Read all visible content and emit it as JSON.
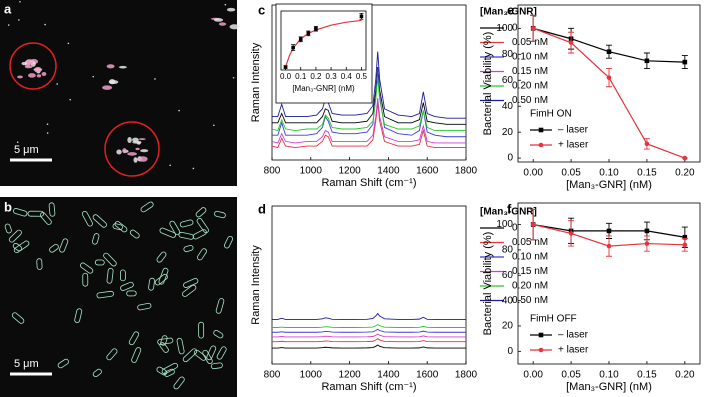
{
  "images": [
    {
      "panel": "a",
      "scale_bar": "5 μm"
    },
    {
      "panel": "b",
      "scale_bar": "5 μm"
    }
  ],
  "chart_data": [
    {
      "panel": "c",
      "type": "line",
      "ylabel": "Raman Intensity",
      "xlabel": "Raman Shift (cm⁻¹)",
      "xlim": [
        800,
        1800
      ],
      "xticks": [
        800,
        1000,
        1200,
        1400,
        1600,
        1800
      ],
      "ylim": [
        0,
        100
      ],
      "legend_title": "[Man₃-GNR]",
      "x": [
        800,
        830,
        850,
        870,
        920,
        980,
        1030,
        1060,
        1075,
        1090,
        1110,
        1160,
        1230,
        1290,
        1320,
        1335,
        1345,
        1355,
        1380,
        1450,
        1520,
        1560,
        1580,
        1600,
        1640,
        1700,
        1750,
        1780,
        1800
      ],
      "series": [
        {
          "name": "0",
          "color": "#000000",
          "values": [
            24,
            24,
            30,
            24,
            24,
            24,
            24,
            28,
            33,
            32,
            25,
            24,
            24,
            25,
            30,
            45,
            60,
            45,
            28,
            24,
            24,
            26,
            37,
            25,
            24,
            23,
            23,
            23,
            23
          ]
        },
        {
          "name": "0.05 nM",
          "color": "#e8323c",
          "values": [
            9,
            8,
            14,
            9,
            8,
            9,
            9,
            12,
            16,
            15,
            9,
            9,
            9,
            9,
            13,
            25,
            37,
            25,
            12,
            9,
            9,
            10,
            19,
            9,
            8,
            8,
            8,
            8,
            8
          ]
        },
        {
          "name": "0.10 nM",
          "color": "#3a3adf",
          "values": [
            16,
            16,
            24,
            16,
            16,
            16,
            17,
            21,
            28,
            25,
            18,
            17,
            17,
            18,
            23,
            41,
            59,
            41,
            21,
            17,
            16,
            19,
            32,
            18,
            16,
            15,
            15,
            15,
            15
          ]
        },
        {
          "name": "0.15 nM",
          "color": "#d040d0",
          "values": [
            12,
            11,
            17,
            12,
            11,
            12,
            12,
            15,
            19,
            18,
            12,
            12,
            12,
            12,
            16,
            28,
            40,
            28,
            15,
            12,
            12,
            13,
            22,
            12,
            11,
            11,
            11,
            11,
            11
          ]
        },
        {
          "name": "0.20 nM",
          "color": "#28c828",
          "values": [
            20,
            19,
            26,
            20,
            19,
            20,
            20,
            23,
            29,
            27,
            21,
            20,
            20,
            21,
            25,
            39,
            53,
            39,
            23,
            20,
            20,
            22,
            32,
            21,
            19,
            19,
            19,
            19,
            19
          ]
        },
        {
          "name": "0.50 nM",
          "color": "#1a1a9a",
          "values": [
            28,
            28,
            36,
            28,
            28,
            28,
            29,
            33,
            39,
            37,
            30,
            29,
            29,
            30,
            35,
            52,
            70,
            52,
            33,
            29,
            28,
            30,
            44,
            30,
            28,
            27,
            27,
            27,
            27
          ]
        }
      ]
    },
    {
      "type": "scatter",
      "xlabel": "[Man₃-GNR] (nM)",
      "xlim": [
        -0.03,
        0.53
      ],
      "xticks": [
        {
          "value": 0,
          "label": "0.0"
        },
        0.1,
        0.2,
        0.3,
        0.4,
        0.5
      ],
      "ylim": [
        0,
        100
      ],
      "x": [
        0,
        0.05,
        0.1,
        0.15,
        0.2,
        0.5
      ],
      "values": [
        5,
        38,
        52,
        62,
        70,
        91
      ],
      "errors": [
        2,
        5,
        4,
        4,
        4,
        5
      ],
      "color": "#000000",
      "fit": {
        "x": [
          0,
          0.025,
          0.05,
          0.1,
          0.15,
          0.2,
          0.3,
          0.4,
          0.5
        ],
        "values": [
          5,
          24,
          37,
          53,
          62,
          68,
          76,
          81,
          84
        ],
        "color": "#e8323c"
      }
    },
    {
      "panel": "d",
      "type": "line",
      "ylabel": "Raman Intensity",
      "xlabel": "Raman Shift (cm⁻¹)",
      "xlim": [
        800,
        1800
      ],
      "xticks": [
        800,
        1000,
        1200,
        1400,
        1600,
        1800
      ],
      "ylim": [
        0,
        100
      ],
      "legend_title": "[Man₃-GNR]",
      "x": [
        800,
        830,
        850,
        870,
        920,
        980,
        1030,
        1060,
        1075,
        1090,
        1110,
        1160,
        1230,
        1290,
        1320,
        1335,
        1345,
        1355,
        1380,
        1450,
        1520,
        1560,
        1580,
        1600,
        1640,
        1700,
        1750,
        1780,
        1800
      ],
      "series": [
        {
          "name": "0",
          "color": "#000000",
          "values": [
            10.1,
            10.1,
            10.4,
            10.1,
            10.1,
            10.1,
            10.1,
            10.3,
            10.6,
            10.5,
            10.2,
            10.1,
            10.1,
            10.2,
            10.4,
            11.2,
            12,
            11.2,
            10.3,
            10.1,
            10.1,
            10.2,
            10.8,
            10.2,
            10.1,
            10.1,
            10.1,
            10.1,
            10.1
          ]
        },
        {
          "name": "0.05 nM",
          "color": "#e8323c",
          "values": [
            14.1,
            14.1,
            14.4,
            14.1,
            14.1,
            14.1,
            14.1,
            14.3,
            14.6,
            14.5,
            14.2,
            14.1,
            14.1,
            14.2,
            14.4,
            15.2,
            16,
            15.2,
            14.3,
            14.1,
            14.1,
            14.2,
            14.8,
            14.2,
            14.1,
            14.1,
            14.1,
            14.1,
            14.1
          ]
        },
        {
          "name": "0.10 nM",
          "color": "#3a3adf",
          "values": [
            20.1,
            20.1,
            20.4,
            20.1,
            20.1,
            20.1,
            20.1,
            20.3,
            20.6,
            20.5,
            20.2,
            20.1,
            20.1,
            20.2,
            20.4,
            21.2,
            22,
            21.2,
            20.3,
            20.1,
            20.1,
            20.2,
            20.8,
            20.2,
            20.1,
            20.1,
            20.1,
            20.1,
            20.1
          ]
        },
        {
          "name": "0.15 nM",
          "color": "#d040d0",
          "values": [
            17.1,
            17.1,
            17.4,
            17.1,
            17.1,
            17.1,
            17.1,
            17.3,
            17.6,
            17.5,
            17.2,
            17.1,
            17.1,
            17.2,
            17.4,
            18.2,
            19,
            18.2,
            17.3,
            17.1,
            17.1,
            17.2,
            17.8,
            17.2,
            17.1,
            17.1,
            17.1,
            17.1,
            17.1
          ]
        },
        {
          "name": "0.20 nM",
          "color": "#28c828",
          "values": [
            23.1,
            23.1,
            23.4,
            23.1,
            23.1,
            23.1,
            23.1,
            23.3,
            23.6,
            23.5,
            23.2,
            23.1,
            23.1,
            23.2,
            23.4,
            24.2,
            25,
            24.2,
            23.3,
            23.1,
            23.1,
            23.2,
            23.8,
            23.2,
            23.1,
            23.1,
            23.1,
            23.1,
            23.1
          ]
        },
        {
          "name": "0.50 nM",
          "color": "#1a1a9a",
          "values": [
            28.2,
            28.2,
            28.9,
            28.2,
            28.2,
            28.2,
            28.2,
            28.6,
            29.2,
            29,
            28.3,
            28.2,
            28.2,
            28.3,
            28.8,
            30.4,
            32,
            30.4,
            28.6,
            28.2,
            28.2,
            28.4,
            29.6,
            28.3,
            28.2,
            28.1,
            28.1,
            28.1,
            28.1
          ]
        }
      ]
    },
    {
      "panel": "e",
      "type": "errorbar",
      "ylabel": "Bacterial Viability (%)",
      "xlabel": "[Man₃-GNR] (nM)",
      "xlim": [
        -0.02,
        0.22
      ],
      "xticks": [
        {
          "value": 0,
          "label": "0.00"
        },
        0.05,
        {
          "value": 0.1,
          "label": "0.10"
        },
        0.15,
        {
          "value": 0.2,
          "label": "0.20"
        }
      ],
      "ylim": [
        -3,
        118
      ],
      "yticks": [
        0,
        20,
        40,
        60,
        80,
        100
      ],
      "annotation": "FimH ON",
      "x": [
        0,
        0.05,
        0.1,
        0.15,
        0.2
      ],
      "series": [
        {
          "name": "– laser",
          "color": "#000000",
          "values": [
            100,
            92,
            82,
            75,
            74
          ],
          "errors": [
            10,
            8,
            5,
            6,
            5
          ]
        },
        {
          "name": "+ laser",
          "color": "#e8323c",
          "values": [
            100,
            89,
            62,
            11,
            0
          ],
          "errors": [
            10,
            8,
            7,
            4,
            0
          ]
        }
      ]
    },
    {
      "panel": "f",
      "type": "errorbar",
      "ylabel": "Bacterial Viability (%)",
      "xlabel": "[Man₃-GNR] (nM)",
      "xlim": [
        -0.02,
        0.22
      ],
      "xticks": [
        {
          "value": 0,
          "label": "0.00"
        },
        0.05,
        {
          "value": 0.1,
          "label": "0.10"
        },
        0.15,
        {
          "value": 0.2,
          "label": "0.20"
        }
      ],
      "ylim": [
        -10,
        117
      ],
      "yticks": [
        0,
        20,
        40,
        60,
        80,
        100
      ],
      "annotation": "FimH OFF",
      "x": [
        0,
        0.05,
        0.1,
        0.15,
        0.2
      ],
      "series": [
        {
          "name": "– laser",
          "color": "#000000",
          "values": [
            100,
            95,
            95,
            95,
            90
          ],
          "errors": [
            12,
            10,
            6,
            7,
            8
          ]
        },
        {
          "name": "+ laser",
          "color": "#e8323c",
          "values": [
            100,
            93,
            83,
            85,
            84
          ],
          "errors": [
            12,
            10,
            8,
            6,
            5
          ]
        }
      ]
    }
  ]
}
